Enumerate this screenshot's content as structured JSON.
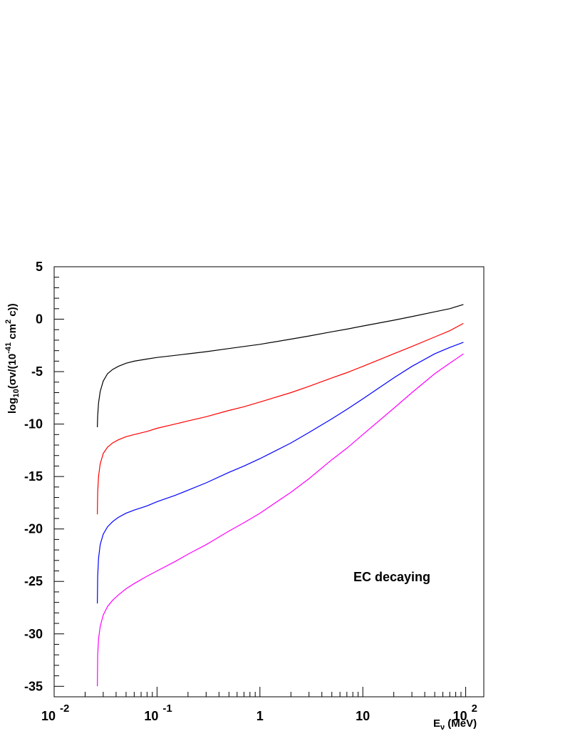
{
  "chart_data": {
    "type": "line",
    "title": "",
    "xscale": "log",
    "xlim": [
      0.01,
      150
    ],
    "ylim": [
      -36,
      5
    ],
    "grid": false,
    "xlabel": {
      "main": "E",
      "sub": "ν",
      "rest": " (MeV)"
    },
    "ylabel": {
      "pre": "log",
      "sub": "10",
      "mid": "(σv/(10",
      "sup1": "-41",
      "mid2": " cm",
      "sup2": "2",
      "post": " c))"
    },
    "annotation": "EC decaying",
    "x_ticks": [
      {
        "value": 0.01,
        "base": "10",
        "exp": "-2"
      },
      {
        "value": 0.1,
        "base": "10",
        "exp": "-1"
      },
      {
        "value": 1,
        "base": "1",
        "exp": ""
      },
      {
        "value": 10,
        "base": "10",
        "exp": ""
      },
      {
        "value": 100,
        "base": "10",
        "exp": "2"
      }
    ],
    "y_ticks": [
      {
        "value": 5,
        "label": "5"
      },
      {
        "value": 0,
        "label": "0"
      },
      {
        "value": -5,
        "label": "-5"
      },
      {
        "value": -10,
        "label": "-10"
      },
      {
        "value": -15,
        "label": "-15"
      },
      {
        "value": -20,
        "label": "-20"
      },
      {
        "value": -25,
        "label": "-25"
      },
      {
        "value": -30,
        "label": "-30"
      },
      {
        "value": -35,
        "label": "-35"
      }
    ],
    "series": [
      {
        "color": "#000000",
        "x": [
          0.0263,
          0.0265,
          0.027,
          0.028,
          0.03,
          0.033,
          0.037,
          0.042,
          0.05,
          0.06,
          0.08,
          0.1,
          0.15,
          0.2,
          0.3,
          0.5,
          0.7,
          1,
          2,
          3,
          5,
          7,
          10,
          20,
          30,
          50,
          70,
          95
        ],
        "y": [
          -10.3,
          -9.2,
          -8.0,
          -6.9,
          -5.9,
          -5.2,
          -4.8,
          -4.5,
          -4.2,
          -4.0,
          -3.8,
          -3.65,
          -3.45,
          -3.3,
          -3.1,
          -2.8,
          -2.6,
          -2.4,
          -1.9,
          -1.6,
          -1.2,
          -0.95,
          -0.65,
          -0.1,
          0.25,
          0.7,
          1.0,
          1.4
        ]
      },
      {
        "color": "#ff0000",
        "x": [
          0.0263,
          0.0265,
          0.027,
          0.028,
          0.03,
          0.033,
          0.037,
          0.042,
          0.05,
          0.06,
          0.08,
          0.1,
          0.15,
          0.2,
          0.3,
          0.5,
          0.7,
          1,
          2,
          3,
          5,
          7,
          10,
          20,
          30,
          50,
          70,
          95
        ],
        "y": [
          -18.6,
          -16.5,
          -15.0,
          -13.8,
          -12.8,
          -12.2,
          -11.8,
          -11.5,
          -11.2,
          -11.0,
          -10.7,
          -10.4,
          -10.0,
          -9.7,
          -9.3,
          -8.7,
          -8.35,
          -7.9,
          -7.0,
          -6.4,
          -5.6,
          -5.1,
          -4.5,
          -3.3,
          -2.6,
          -1.7,
          -1.1,
          -0.4
        ]
      },
      {
        "color": "#0000ff",
        "x": [
          0.0263,
          0.0265,
          0.027,
          0.028,
          0.03,
          0.033,
          0.037,
          0.042,
          0.05,
          0.06,
          0.08,
          0.1,
          0.15,
          0.2,
          0.3,
          0.5,
          0.7,
          1,
          2,
          3,
          5,
          7,
          10,
          20,
          30,
          50,
          70,
          95
        ],
        "y": [
          -27.1,
          -24.5,
          -22.8,
          -21.5,
          -20.5,
          -19.8,
          -19.3,
          -18.9,
          -18.5,
          -18.2,
          -17.8,
          -17.4,
          -16.8,
          -16.3,
          -15.6,
          -14.6,
          -14.0,
          -13.3,
          -11.8,
          -10.8,
          -9.5,
          -8.6,
          -7.6,
          -5.6,
          -4.5,
          -3.3,
          -2.7,
          -2.2
        ]
      },
      {
        "color": "#ff00ff",
        "x": [
          0.0263,
          0.0265,
          0.027,
          0.028,
          0.03,
          0.033,
          0.037,
          0.042,
          0.05,
          0.06,
          0.08,
          0.1,
          0.15,
          0.2,
          0.3,
          0.5,
          0.7,
          1,
          2,
          3,
          5,
          7,
          10,
          20,
          30,
          50,
          70,
          95
        ],
        "y": [
          -35.0,
          -32.0,
          -30.5,
          -29.3,
          -28.2,
          -27.4,
          -26.8,
          -26.3,
          -25.7,
          -25.2,
          -24.5,
          -24.0,
          -23.1,
          -22.4,
          -21.5,
          -20.2,
          -19.4,
          -18.5,
          -16.5,
          -15.2,
          -13.4,
          -12.3,
          -11.0,
          -8.5,
          -7.0,
          -5.2,
          -4.2,
          -3.3
        ]
      }
    ]
  }
}
